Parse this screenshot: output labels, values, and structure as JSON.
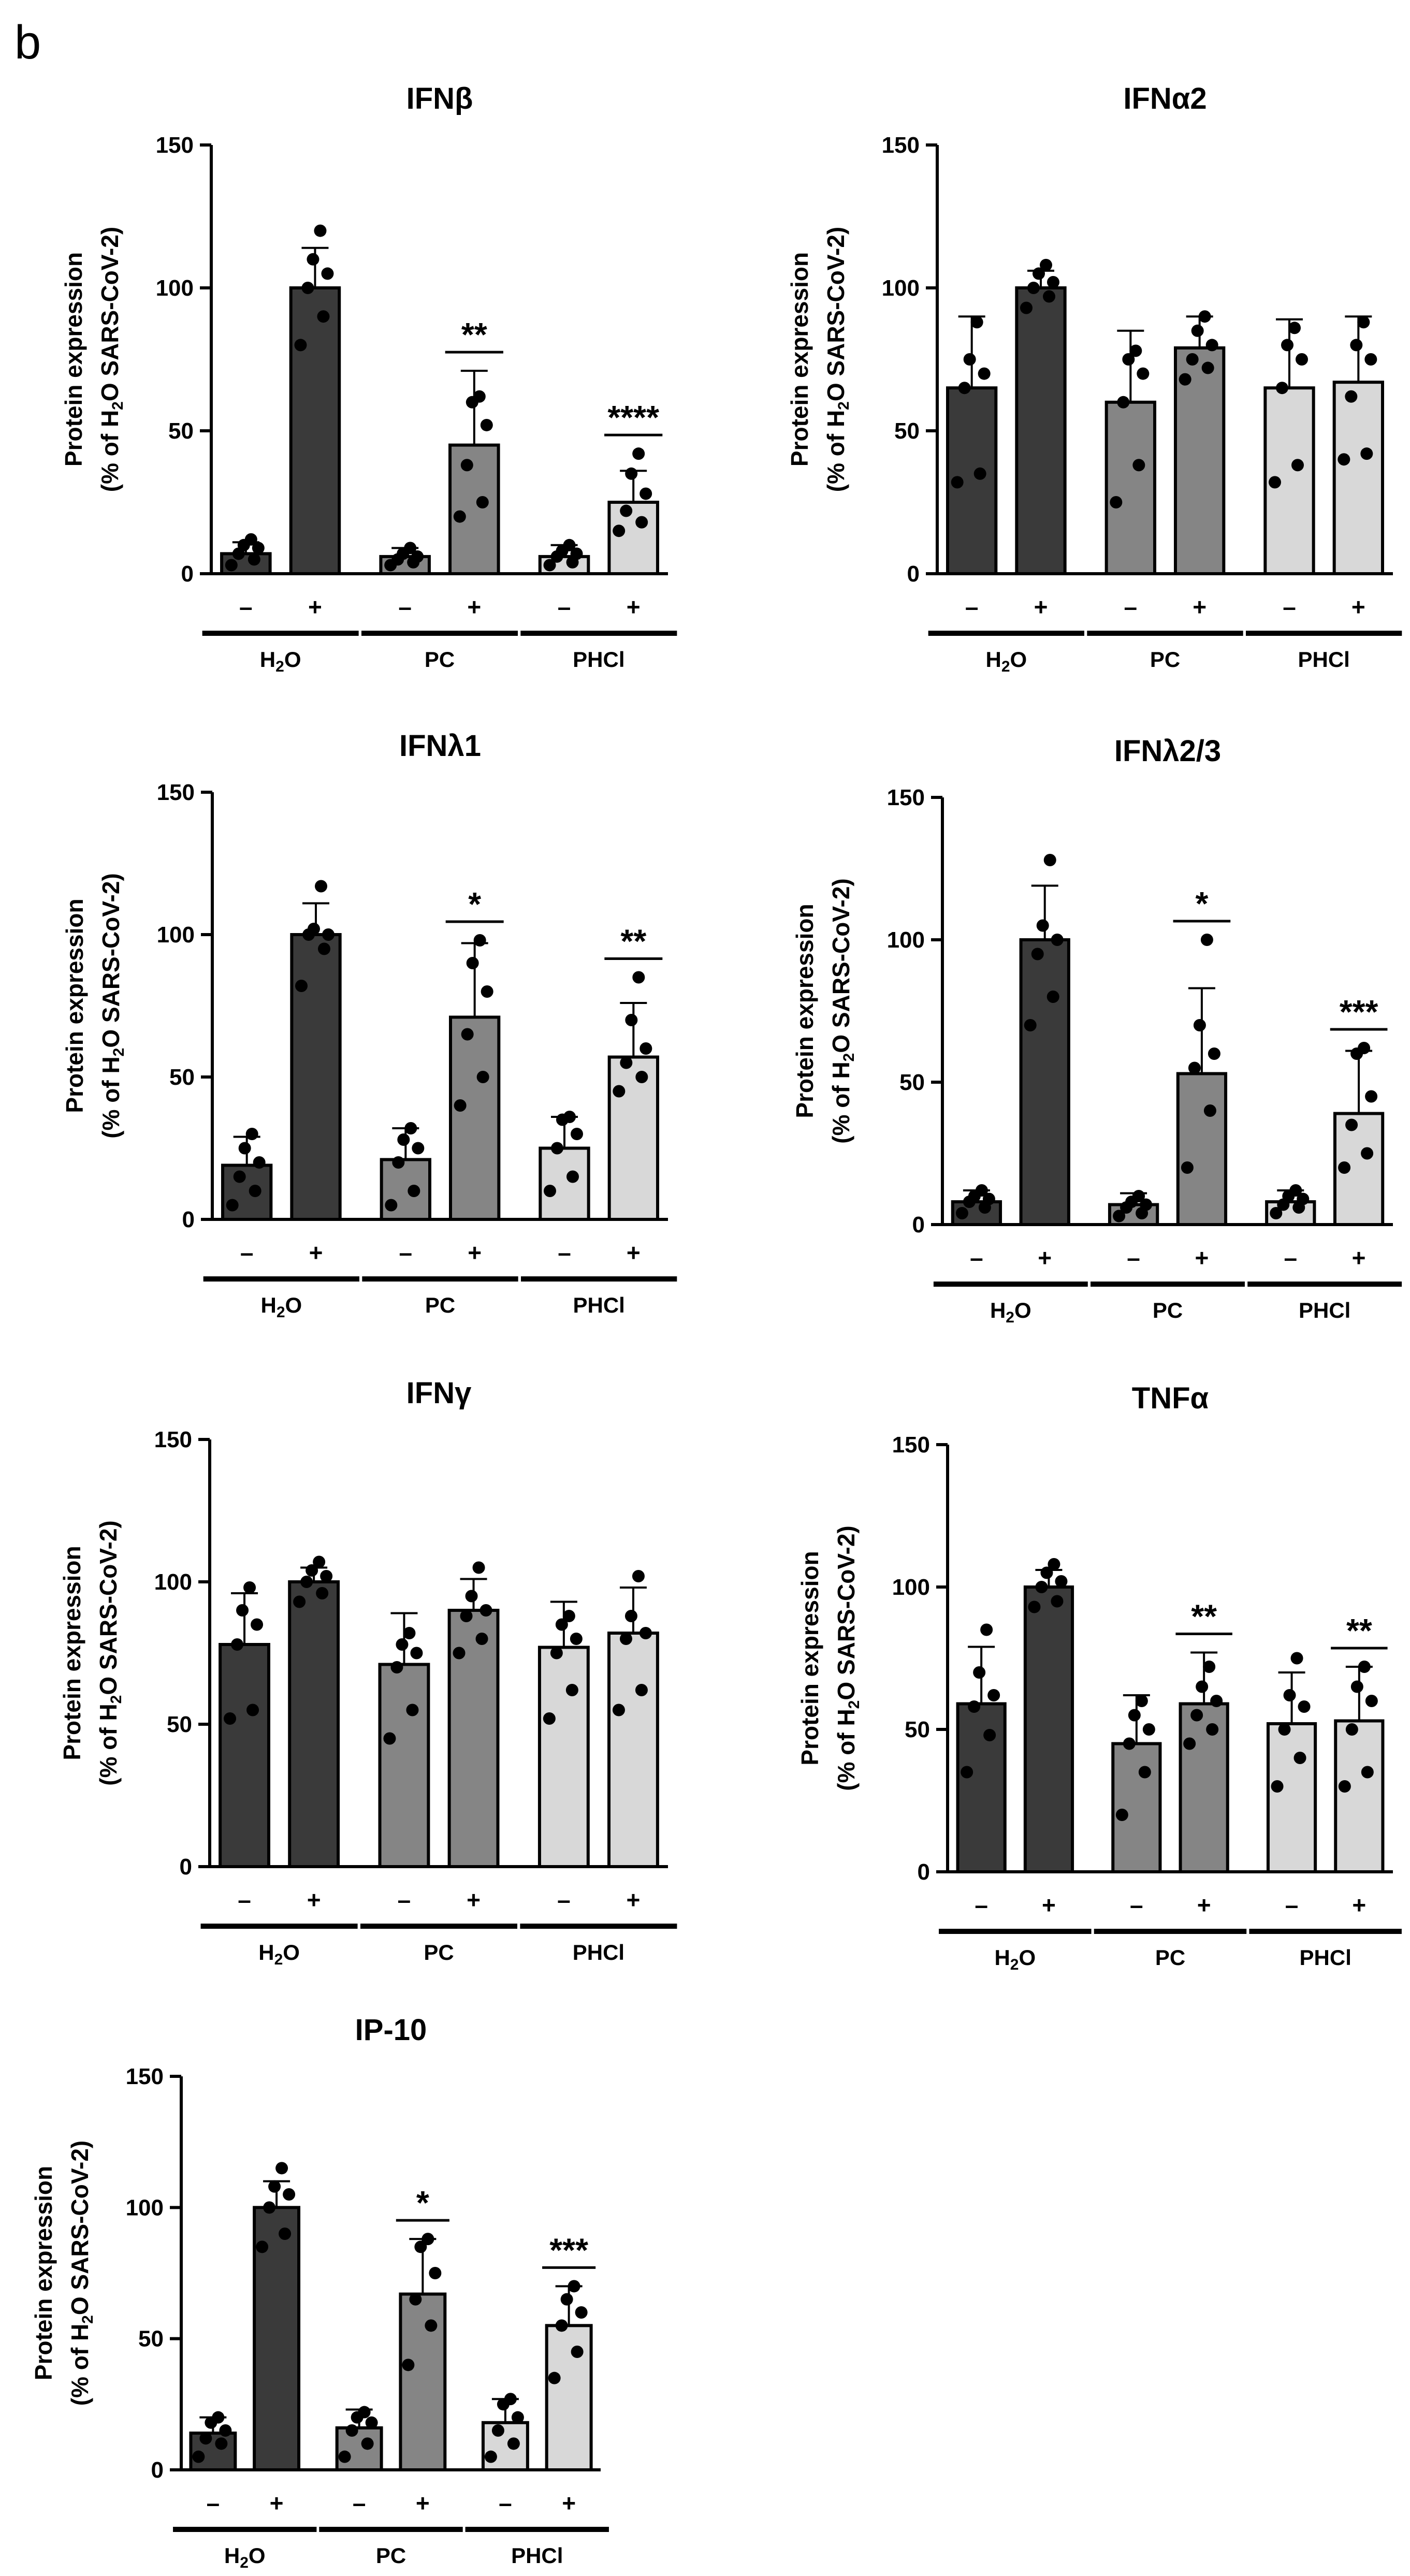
{
  "panel_label": "b",
  "colors": {
    "h2o": "#3a3a3a",
    "pc": "#858585",
    "phcl": "#d8d8d8",
    "axis": "#000000"
  },
  "chart_data": [
    {
      "type": "bar",
      "title": "IFNβ",
      "ylabel_line1": "Protein expression",
      "ylabel_line2": [
        "(% of H",
        "2",
        "O SARS-CoV-2)"
      ],
      "ylim": [
        0,
        150
      ],
      "yticks": [
        0,
        50,
        100,
        150
      ],
      "signs": [
        "–",
        "+",
        "–",
        "+",
        "–",
        "+"
      ],
      "groups": [
        [
          "H",
          "2",
          "O"
        ],
        [
          "PC"
        ],
        [
          "PHCl"
        ]
      ],
      "values": [
        7,
        100,
        6,
        45,
        6,
        25
      ],
      "errors": [
        4,
        14,
        3,
        26,
        4,
        11
      ],
      "points": [
        [
          3,
          5,
          7,
          9,
          10,
          12
        ],
        [
          80,
          90,
          100,
          105,
          110,
          120
        ],
        [
          3,
          4,
          5,
          6,
          7,
          9
        ],
        [
          20,
          25,
          38,
          52,
          60,
          62
        ],
        [
          3,
          4,
          6,
          7,
          8,
          10
        ],
        [
          15,
          18,
          22,
          28,
          35,
          42
        ]
      ],
      "significance": [
        "",
        "",
        "",
        "**",
        "",
        "****"
      ]
    },
    {
      "type": "bar",
      "title": "IFNα2",
      "ylabel_line1": "Protein expression",
      "ylabel_line2": [
        "(% of H",
        "2",
        "O SARS-CoV-2)"
      ],
      "ylim": [
        0,
        150
      ],
      "yticks": [
        0,
        50,
        100,
        150
      ],
      "signs": [
        "–",
        "+",
        "–",
        "+",
        "–",
        "+"
      ],
      "groups": [
        [
          "H",
          "2",
          "O"
        ],
        [
          "PC"
        ],
        [
          "PHCl"
        ]
      ],
      "values": [
        65,
        100,
        60,
        79,
        65,
        67
      ],
      "errors": [
        25,
        6,
        25,
        11,
        24,
        23
      ],
      "points": [
        [
          32,
          35,
          65,
          70,
          75,
          88
        ],
        [
          93,
          97,
          100,
          102,
          105,
          108
        ],
        [
          25,
          38,
          60,
          70,
          75,
          78
        ],
        [
          68,
          72,
          75,
          80,
          85,
          90
        ],
        [
          32,
          38,
          65,
          75,
          80,
          86
        ],
        [
          40,
          42,
          62,
          75,
          80,
          88
        ]
      ],
      "significance": [
        "",
        "",
        "",
        "",
        "",
        ""
      ]
    },
    {
      "type": "bar",
      "title": "IFNλ1",
      "ylabel_line1": "Protein expression",
      "ylabel_line2": [
        "(% of H",
        "2",
        "O SARS-CoV-2)"
      ],
      "ylim": [
        0,
        150
      ],
      "yticks": [
        0,
        50,
        100,
        150
      ],
      "signs": [
        "–",
        "+",
        "–",
        "+",
        "–",
        "+"
      ],
      "groups": [
        [
          "H",
          "2",
          "O"
        ],
        [
          "PC"
        ],
        [
          "PHCl"
        ]
      ],
      "values": [
        19,
        100,
        21,
        71,
        25,
        57
      ],
      "errors": [
        10,
        11,
        11,
        26,
        11,
        19
      ],
      "points": [
        [
          5,
          10,
          15,
          20,
          25,
          30
        ],
        [
          82,
          95,
          100,
          100,
          102,
          117
        ],
        [
          5,
          10,
          20,
          25,
          28,
          32
        ],
        [
          40,
          50,
          65,
          80,
          90,
          98
        ],
        [
          10,
          15,
          25,
          30,
          35,
          36
        ],
        [
          45,
          50,
          55,
          60,
          70,
          85
        ]
      ],
      "significance": [
        "",
        "",
        "",
        "*",
        "",
        "**"
      ]
    },
    {
      "type": "bar",
      "title": "IFNλ2/3",
      "ylabel_line1": "Protein expression",
      "ylabel_line2": [
        "(% of H",
        "2",
        "O SARS-CoV-2)"
      ],
      "ylim": [
        0,
        150
      ],
      "yticks": [
        0,
        50,
        100,
        150
      ],
      "signs": [
        "–",
        "+",
        "–",
        "+",
        "–",
        "+"
      ],
      "groups": [
        [
          "H",
          "2",
          "O"
        ],
        [
          "PC"
        ],
        [
          "PHCl"
        ]
      ],
      "values": [
        8,
        100,
        7,
        53,
        8,
        39
      ],
      "errors": [
        4,
        19,
        4,
        30,
        4,
        22
      ],
      "points": [
        [
          4,
          6,
          8,
          9,
          10,
          12
        ],
        [
          70,
          80,
          95,
          100,
          105,
          128
        ],
        [
          3,
          4,
          6,
          7,
          8,
          10
        ],
        [
          20,
          40,
          55,
          60,
          70,
          100
        ],
        [
          4,
          6,
          7,
          9,
          10,
          12
        ],
        [
          20,
          25,
          35,
          45,
          60,
          62
        ]
      ],
      "significance": [
        "",
        "",
        "",
        "*",
        "",
        "***"
      ]
    },
    {
      "type": "bar",
      "title": "IFNγ",
      "ylabel_line1": "Protein expression",
      "ylabel_line2": [
        "(% of H",
        "2",
        "O SARS-CoV-2)"
      ],
      "ylim": [
        0,
        150
      ],
      "yticks": [
        0,
        50,
        100,
        150
      ],
      "signs": [
        "–",
        "+",
        "–",
        "+",
        "–",
        "+"
      ],
      "groups": [
        [
          "H",
          "2",
          "O"
        ],
        [
          "PC"
        ],
        [
          "PHCl"
        ]
      ],
      "values": [
        78,
        100,
        71,
        90,
        77,
        82
      ],
      "errors": [
        18,
        5,
        18,
        11,
        16,
        16
      ],
      "points": [
        [
          52,
          55,
          78,
          85,
          90,
          98
        ],
        [
          93,
          96,
          100,
          102,
          104,
          107
        ],
        [
          45,
          55,
          70,
          75,
          78,
          82
        ],
        [
          75,
          80,
          88,
          90,
          95,
          105
        ],
        [
          52,
          62,
          75,
          80,
          85,
          88
        ],
        [
          55,
          62,
          80,
          82,
          88,
          102
        ]
      ],
      "significance": [
        "",
        "",
        "",
        "",
        "",
        ""
      ]
    },
    {
      "type": "bar",
      "title": "TNFα",
      "ylabel_line1": "Protein expression",
      "ylabel_line2": [
        "(% of H",
        "2",
        "O SARS-CoV-2)"
      ],
      "ylim": [
        0,
        150
      ],
      "yticks": [
        0,
        50,
        100,
        150
      ],
      "signs": [
        "–",
        "+",
        "–",
        "+",
        "–",
        "+"
      ],
      "groups": [
        [
          "H",
          "2",
          "O"
        ],
        [
          "PC"
        ],
        [
          "PHCl"
        ]
      ],
      "values": [
        59,
        100,
        45,
        59,
        52,
        53
      ],
      "errors": [
        20,
        6,
        17,
        18,
        18,
        19
      ],
      "points": [
        [
          35,
          48,
          58,
          62,
          70,
          85
        ],
        [
          93,
          95,
          100,
          102,
          105,
          108
        ],
        [
          20,
          35,
          45,
          50,
          55,
          60
        ],
        [
          45,
          50,
          55,
          60,
          65,
          72
        ],
        [
          30,
          40,
          50,
          58,
          62,
          75
        ],
        [
          30,
          35,
          50,
          60,
          65,
          72
        ]
      ],
      "significance": [
        "",
        "",
        "",
        "**",
        "",
        "**"
      ]
    },
    {
      "type": "bar",
      "title": "IP-10",
      "ylabel_line1": "Protein expression",
      "ylabel_line2": [
        "(% of H",
        "2",
        "O SARS-CoV-2)"
      ],
      "ylim": [
        0,
        150
      ],
      "yticks": [
        0,
        50,
        100,
        150
      ],
      "signs": [
        "–",
        "+",
        "–",
        "+",
        "–",
        "+"
      ],
      "groups": [
        [
          "H",
          "2",
          "O"
        ],
        [
          "PC"
        ],
        [
          "PHCl"
        ]
      ],
      "values": [
        14,
        100,
        16,
        67,
        18,
        55
      ],
      "errors": [
        6,
        10,
        7,
        21,
        9,
        15
      ],
      "points": [
        [
          5,
          10,
          12,
          15,
          18,
          20
        ],
        [
          85,
          90,
          100,
          105,
          108,
          115
        ],
        [
          5,
          10,
          15,
          18,
          20,
          22
        ],
        [
          40,
          55,
          65,
          75,
          85,
          88
        ],
        [
          5,
          10,
          15,
          20,
          25,
          27
        ],
        [
          35,
          45,
          55,
          60,
          65,
          70
        ]
      ],
      "significance": [
        "",
        "",
        "",
        "*",
        "",
        "***"
      ]
    }
  ]
}
